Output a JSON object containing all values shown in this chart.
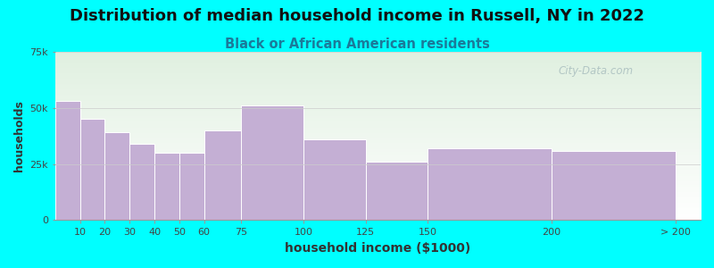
{
  "title": "Distribution of median household income in Russell, NY in 2022",
  "subtitle": "Black or African American residents",
  "xlabel": "household income ($1000)",
  "ylabel": "households",
  "background_color": "#00FFFF",
  "plot_bg_top": "#e0f0e0",
  "plot_bg_bottom": "#ffffff",
  "bar_color": "#c4afd4",
  "bar_edgecolor": "#ffffff",
  "title_fontsize": 13,
  "subtitle_fontsize": 10.5,
  "categories": [
    "10",
    "20",
    "30",
    "40",
    "50",
    "60",
    "75",
    "100",
    "125",
    "150",
    "200",
    "> 200"
  ],
  "bin_lefts": [
    0,
    10,
    20,
    30,
    40,
    50,
    60,
    75,
    100,
    125,
    150,
    200
  ],
  "bin_widths": [
    10,
    10,
    10,
    10,
    10,
    10,
    15,
    25,
    25,
    25,
    50,
    50
  ],
  "values": [
    53000,
    45000,
    39000,
    34000,
    30000,
    30000,
    40000,
    51000,
    36000,
    26000,
    32000,
    31000
  ],
  "ylim": [
    0,
    75000
  ],
  "yticks": [
    0,
    25000,
    50000,
    75000
  ],
  "ytick_labels": [
    "0",
    "25k",
    "50k",
    "75k"
  ],
  "xtick_positions": [
    10,
    20,
    30,
    40,
    50,
    60,
    75,
    100,
    125,
    150,
    200,
    250
  ],
  "xtick_labels": [
    "10",
    "20",
    "30",
    "40",
    "50",
    "60",
    "75",
    "100",
    "125",
    "150",
    "200",
    "> 200"
  ],
  "xlim": [
    0,
    260
  ],
  "grid_color": "#cccccc",
  "watermark_text": "City-Data.com",
  "watermark_color": "#aabfbf"
}
